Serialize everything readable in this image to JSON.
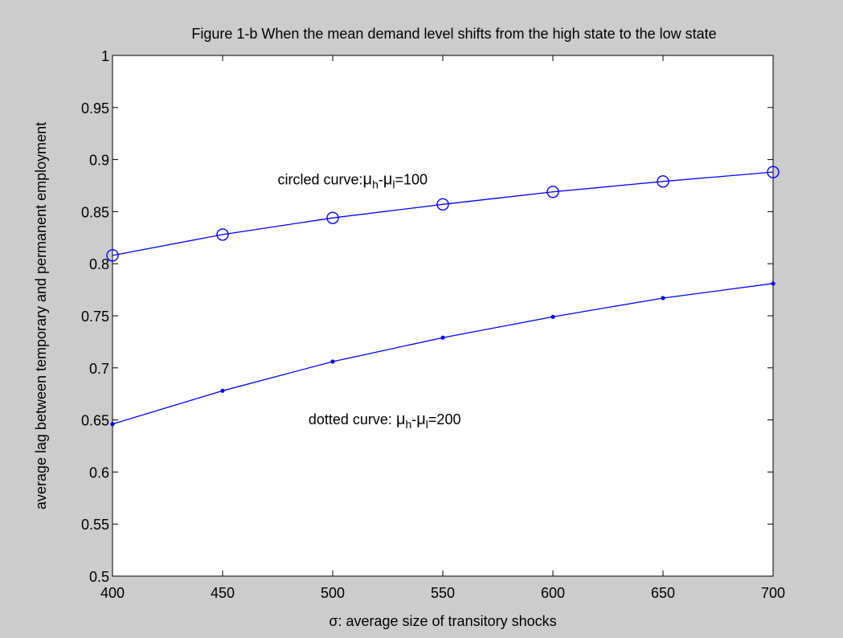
{
  "chart_data": {
    "type": "line",
    "title": "Figure 1-b When the mean demand level shifts from the high state to the low state",
    "xlabel": "σ: average size of transitory shocks",
    "ylabel": "average lag between temporary and permanent employment",
    "xlim": [
      400,
      700
    ],
    "ylim": [
      0.5,
      1.0
    ],
    "xticks": [
      "400",
      "450",
      "500",
      "550",
      "600",
      "650",
      "700"
    ],
    "yticks": [
      "0.5",
      "0.55",
      "0.6",
      "0.65",
      "0.7",
      "0.75",
      "0.8",
      "0.85",
      "0.9",
      "0.95",
      "1"
    ],
    "grid": false,
    "line_color": "#0000ff",
    "x": [
      400,
      450,
      500,
      550,
      600,
      650,
      700
    ],
    "series": [
      {
        "marker": "circle",
        "values": [
          0.808,
          0.828,
          0.844,
          0.857,
          0.869,
          0.879,
          0.888
        ]
      },
      {
        "marker": "dot",
        "values": [
          0.646,
          0.678,
          0.706,
          0.729,
          0.749,
          0.767,
          0.781
        ]
      }
    ],
    "annotations": [
      {
        "prefix": "circled curve:",
        "sym1": "μ",
        "sub1": "h",
        "mid": "-",
        "sym2": "μ",
        "sub2": "l",
        "suffix": "=100",
        "x": 475,
        "y": 0.876
      },
      {
        "prefix": "dotted curve:  ",
        "sym1": "μ",
        "sub1": "h",
        "mid": "-",
        "sym2": "μ",
        "sub2": "l",
        "suffix": "=200",
        "x": 489,
        "y": 0.646
      }
    ]
  }
}
